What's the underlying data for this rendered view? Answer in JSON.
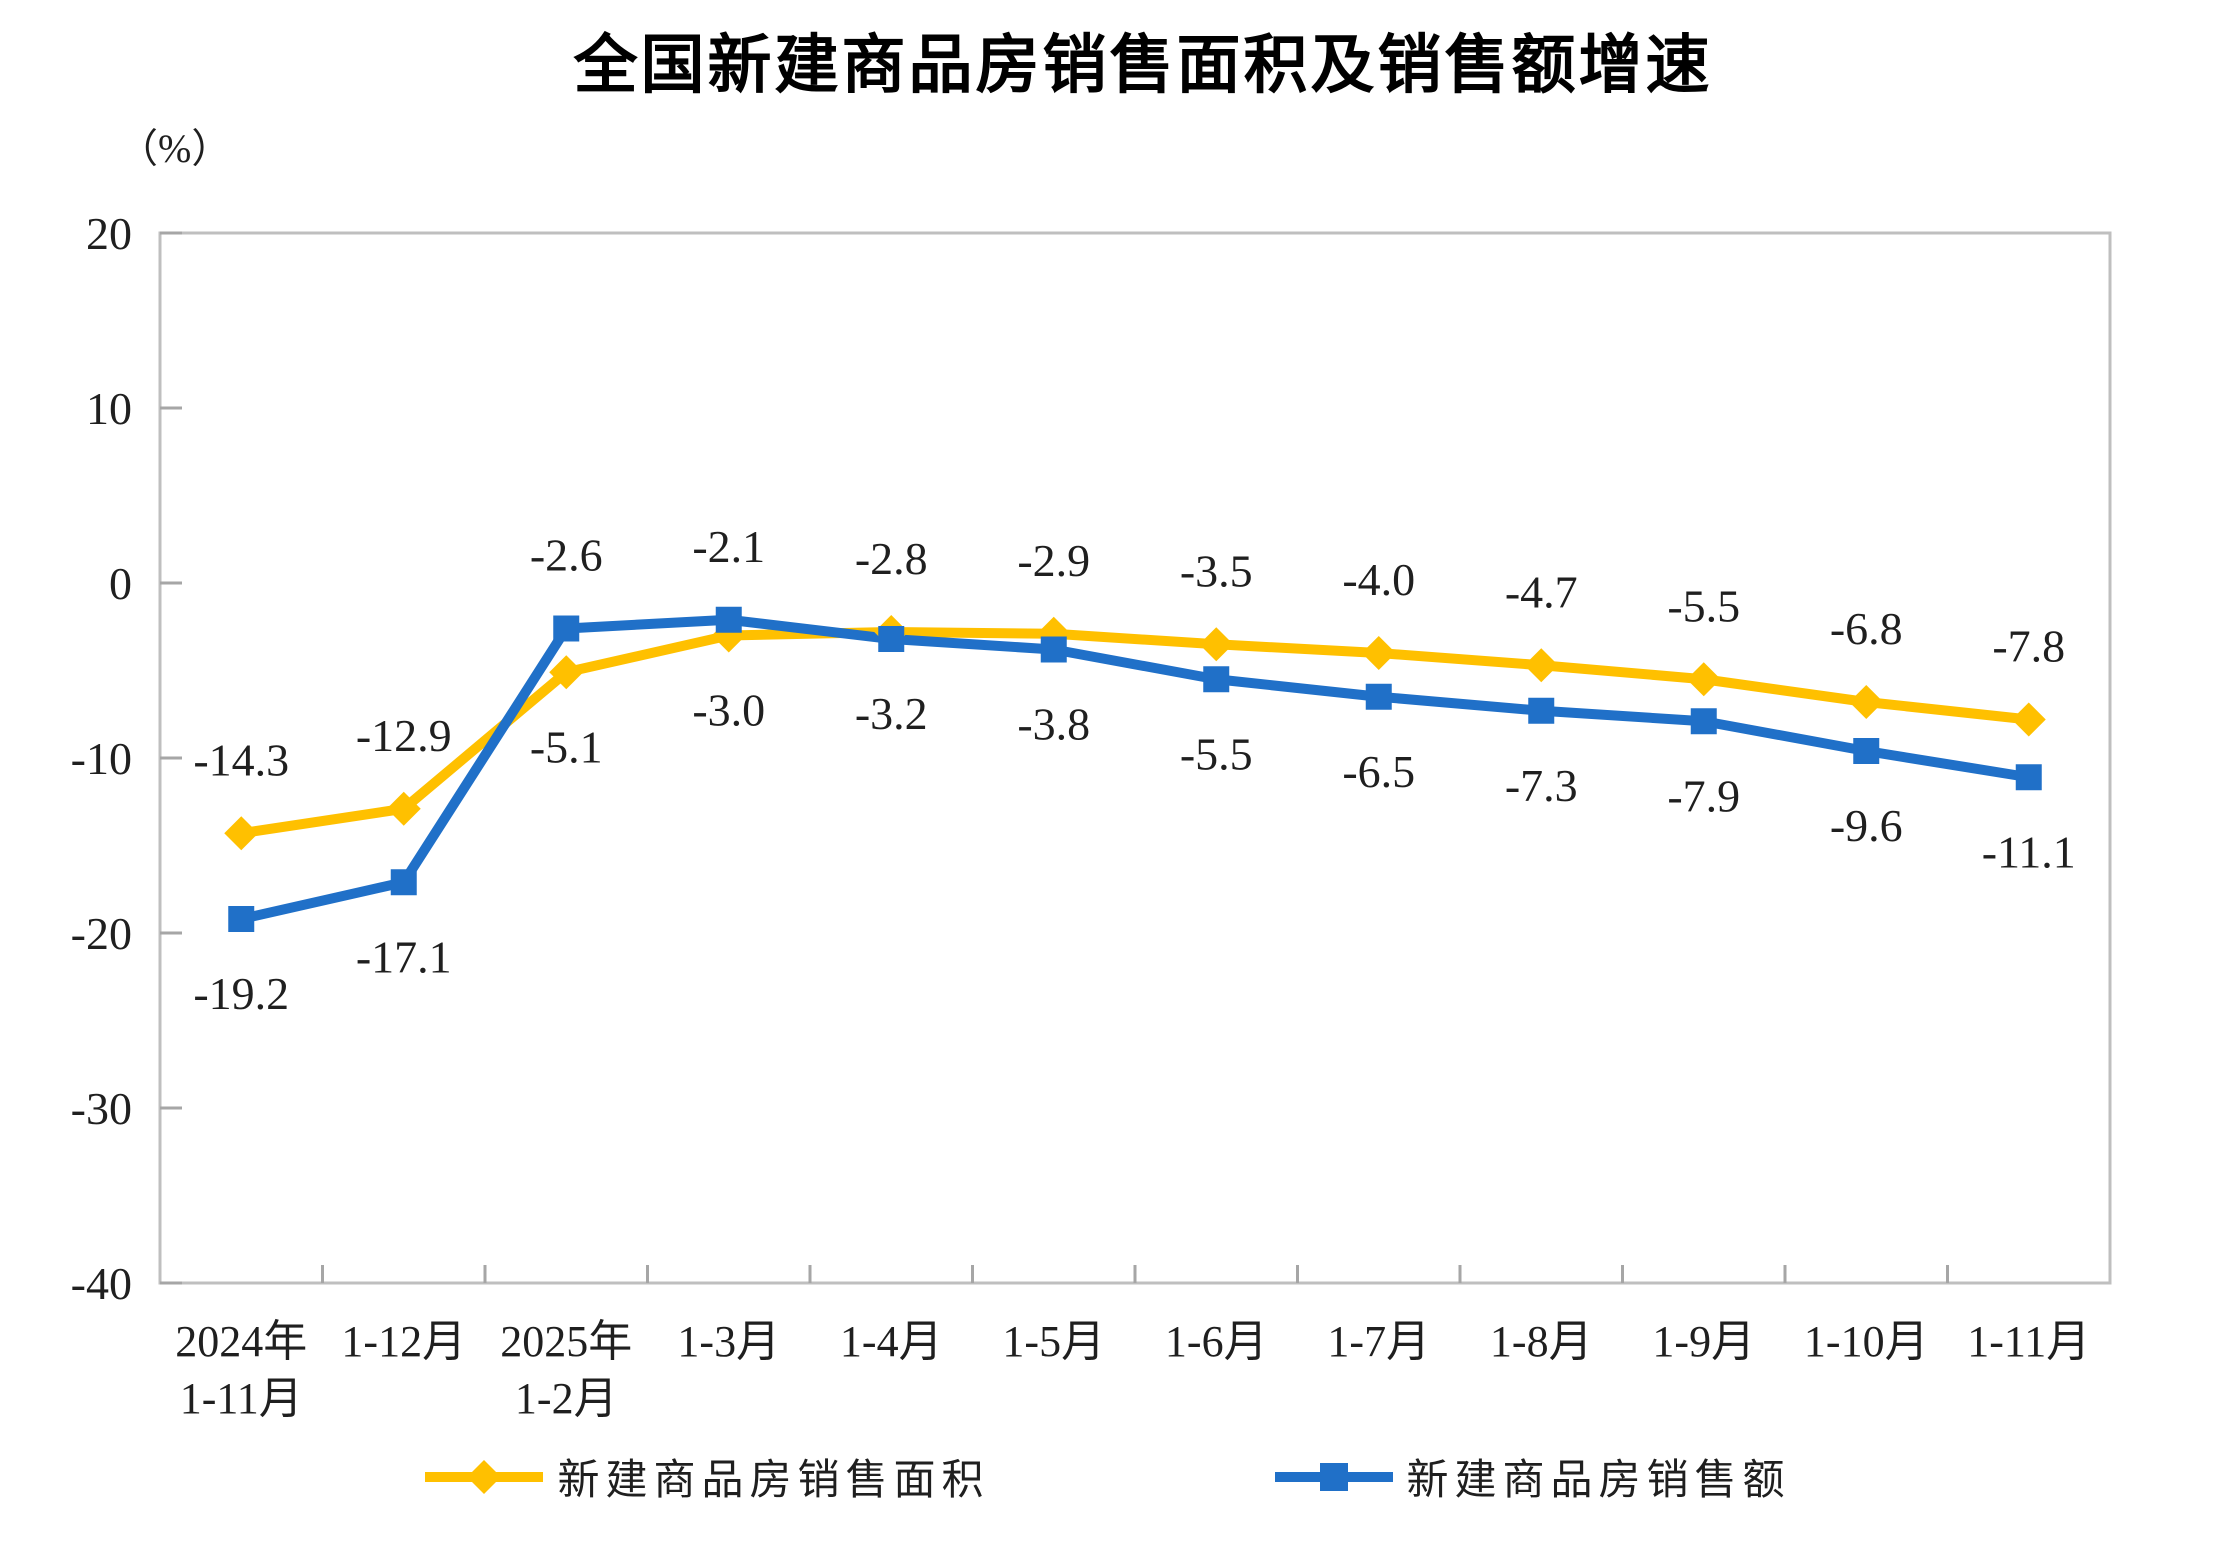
{
  "title": "全国新建商品房销售面积及销售额增速",
  "y_axis_unit": "（%）",
  "colors": {
    "series_area": "#FFC000",
    "series_amount": "#2070C8",
    "axis": "#BFBFBF",
    "tick": "#A6A6A6",
    "text": "#1f1f1f"
  },
  "chart_data": {
    "type": "line",
    "categories": [
      "2024年\n1-11月",
      "1-12月",
      "2025年\n1-2月",
      "1-3月",
      "1-4月",
      "1-5月",
      "1-6月",
      "1-7月",
      "1-8月",
      "1-9月",
      "1-10月",
      "1-11月"
    ],
    "series": [
      {
        "name": "新建商品房销售面积",
        "color": "#FFC000",
        "marker": "diamond",
        "values": [
          -14.3,
          -12.9,
          -5.1,
          -3.0,
          -2.8,
          -2.9,
          -3.5,
          -4.0,
          -4.7,
          -5.5,
          -6.8,
          -7.8
        ]
      },
      {
        "name": "新建商品房销售额",
        "color": "#2070C8",
        "marker": "square",
        "values": [
          -19.2,
          -17.1,
          -2.6,
          -2.1,
          -3.2,
          -3.8,
          -5.5,
          -6.5,
          -7.3,
          -7.9,
          -9.6,
          -11.1
        ]
      }
    ],
    "ylim": [
      -40,
      20
    ],
    "y_ticks": [
      20,
      10,
      0,
      -10,
      -20,
      -30,
      -40
    ],
    "grid": false,
    "data_labels": true,
    "legend_position": "bottom"
  }
}
